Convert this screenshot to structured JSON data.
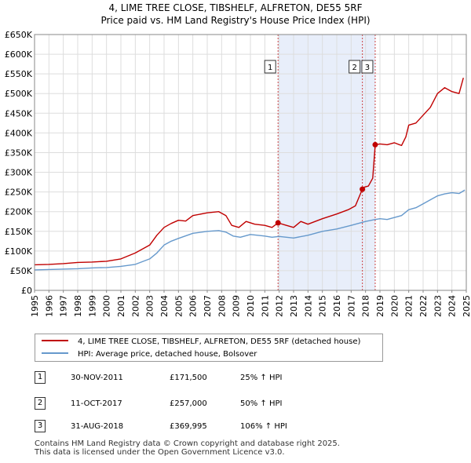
{
  "title_line1": "4, LIME TREE CLOSE, TIBSHELF, ALFRETON, DE55 5RF",
  "title_line2": "Price paid vs. HM Land Registry's House Price Index (HPI)",
  "colors": {
    "property": "#c00000",
    "hpi": "#6699cc",
    "shade": "#e8eefa",
    "grid": "#dddddd",
    "marker_line": "#cc4444"
  },
  "chart_data": {
    "type": "line",
    "title": "Price paid vs. HM Land Registry's House Price Index (HPI)",
    "xlabel": "",
    "ylabel": "",
    "xlim": [
      1995,
      2025
    ],
    "ylim": [
      0,
      650000
    ],
    "grid": true,
    "y_ticks": [
      {
        "value": 0,
        "label": "£0"
      },
      {
        "value": 50000,
        "label": "£50K"
      },
      {
        "value": 100000,
        "label": "£100K"
      },
      {
        "value": 150000,
        "label": "£150K"
      },
      {
        "value": 200000,
        "label": "£200K"
      },
      {
        "value": 250000,
        "label": "£250K"
      },
      {
        "value": 300000,
        "label": "£300K"
      },
      {
        "value": 350000,
        "label": "£350K"
      },
      {
        "value": 400000,
        "label": "£400K"
      },
      {
        "value": 450000,
        "label": "£450K"
      },
      {
        "value": 500000,
        "label": "£500K"
      },
      {
        "value": 550000,
        "label": "£550K"
      },
      {
        "value": 600000,
        "label": "£600K"
      },
      {
        "value": 650000,
        "label": "£650K"
      }
    ],
    "x_ticks": [
      "1995",
      "1996",
      "1997",
      "1998",
      "1999",
      "2000",
      "2001",
      "2002",
      "2003",
      "2004",
      "2005",
      "2006",
      "2007",
      "2008",
      "2009",
      "2010",
      "2011",
      "2012",
      "2013",
      "2014",
      "2015",
      "2016",
      "2017",
      "2018",
      "2019",
      "2020",
      "2021",
      "2022",
      "2023",
      "2024",
      "2025"
    ],
    "shaded_region": [
      2011.92,
      2018.67
    ],
    "series": [
      {
        "name": "4, LIME TREE CLOSE, TIBSHELF, ALFRETON, DE55 5RF (detached house)",
        "color": "#c00000",
        "x": [
          1995.0,
          1996.0,
          1997.0,
          1998.0,
          1999.0,
          2000.0,
          2001.0,
          2002.0,
          2003.0,
          2003.5,
          2004.0,
          2004.5,
          2005.0,
          2005.5,
          2006.0,
          2007.0,
          2007.8,
          2008.3,
          2008.7,
          2009.2,
          2009.7,
          2010.3,
          2011.0,
          2011.5,
          2011.92,
          2012.5,
          2013.0,
          2013.5,
          2014.0,
          2015.0,
          2016.0,
          2016.8,
          2017.3,
          2017.78,
          2017.9,
          2018.2,
          2018.5,
          2018.67,
          2019.0,
          2019.5,
          2020.0,
          2020.5,
          2020.8,
          2021.0,
          2021.5,
          2022.0,
          2022.5,
          2023.0,
          2023.5,
          2024.0,
          2024.5,
          2024.8
        ],
        "y": [
          65000,
          66000,
          68000,
          71000,
          72000,
          74000,
          80000,
          95000,
          115000,
          140000,
          160000,
          170000,
          178000,
          176000,
          190000,
          197000,
          200000,
          190000,
          165000,
          160000,
          175000,
          168000,
          165000,
          160000,
          171500,
          165000,
          160000,
          175000,
          168000,
          182000,
          194000,
          205000,
          215000,
          257000,
          262000,
          265000,
          285000,
          369995,
          372000,
          370000,
          375000,
          368000,
          390000,
          420000,
          425000,
          445000,
          465000,
          500000,
          515000,
          505000,
          500000,
          540000
        ]
      },
      {
        "name": "HPI: Average price, detached house, Bolsover",
        "color": "#6699cc",
        "x": [
          1995.0,
          1996.0,
          1997.0,
          1998.0,
          1999.0,
          2000.0,
          2001.0,
          2002.0,
          2003.0,
          2003.5,
          2004.0,
          2004.5,
          2005.0,
          2006.0,
          2007.0,
          2007.8,
          2008.3,
          2008.8,
          2009.3,
          2010.0,
          2010.5,
          2011.0,
          2011.5,
          2012.0,
          2012.5,
          2013.0,
          2014.0,
          2015.0,
          2016.0,
          2017.0,
          2017.5,
          2018.0,
          2018.67,
          2019.0,
          2019.5,
          2020.0,
          2020.5,
          2021.0,
          2021.5,
          2022.0,
          2022.5,
          2023.0,
          2023.5,
          2024.0,
          2024.5,
          2024.9
        ],
        "y": [
          52000,
          53000,
          54000,
          55000,
          57000,
          58000,
          61000,
          66000,
          80000,
          95000,
          115000,
          125000,
          132000,
          145000,
          150000,
          152000,
          148000,
          138000,
          135000,
          142000,
          140000,
          138000,
          135000,
          137000,
          135000,
          133000,
          140000,
          150000,
          156000,
          165000,
          170000,
          175000,
          180000,
          182000,
          180000,
          185000,
          190000,
          205000,
          210000,
          220000,
          230000,
          240000,
          245000,
          248000,
          246000,
          255000
        ]
      }
    ],
    "sales": [
      {
        "label": "1",
        "x": 2011.92,
        "y": 171500
      },
      {
        "label": "2",
        "x": 2017.78,
        "y": 257000
      },
      {
        "label": "3",
        "x": 2018.67,
        "y": 369995
      }
    ]
  },
  "legend": {
    "property_label": "4, LIME TREE CLOSE, TIBSHELF, ALFRETON, DE55 5RF (detached house)",
    "hpi_label": "HPI: Average price, detached house, Bolsover"
  },
  "transactions": [
    {
      "num": "1",
      "date": "30-NOV-2011",
      "price": "£171,500",
      "hpi": "25% ↑ HPI"
    },
    {
      "num": "2",
      "date": "11-OCT-2017",
      "price": "£257,000",
      "hpi": "50% ↑ HPI"
    },
    {
      "num": "3",
      "date": "31-AUG-2018",
      "price": "£369,995",
      "hpi": "106% ↑ HPI"
    }
  ],
  "footer": {
    "line1": "Contains HM Land Registry data © Crown copyright and database right 2025.",
    "line2": "This data is licensed under the Open Government Licence v3.0."
  }
}
